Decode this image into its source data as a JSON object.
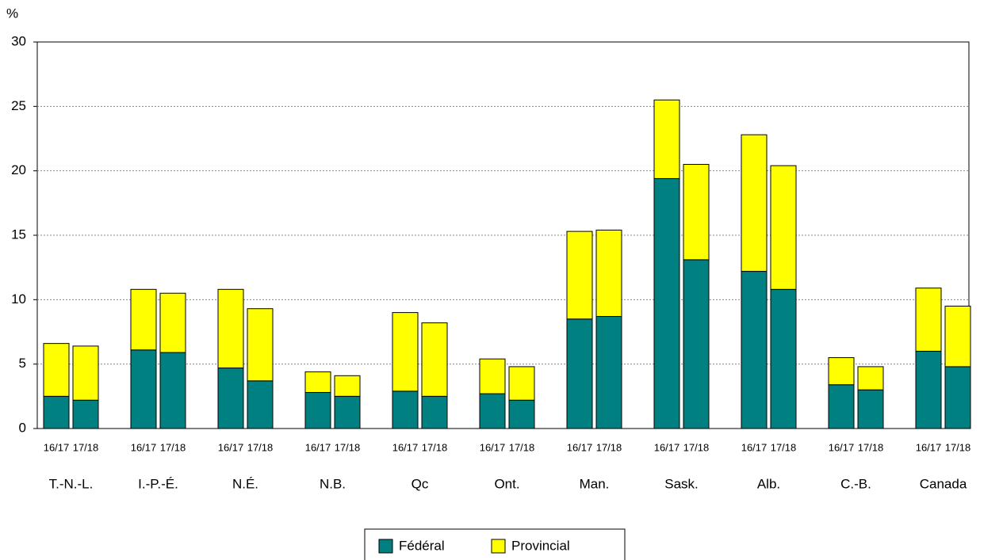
{
  "chart_data": {
    "type": "stacked_bar",
    "y_label": "%",
    "categories": [
      "16/17",
      "17/18",
      "16/17",
      "17/18",
      "16/17",
      "17/18",
      "16/17",
      "17/18",
      "16/17",
      "17/18",
      "16/17",
      "17/18",
      "16/17",
      "17/18",
      "16/17",
      "17/18",
      "16/17",
      "17/18",
      "16/17",
      "17/18",
      "16/17",
      "17/18"
    ],
    "groups": [
      "T.-N.-L.",
      "I.-P.-É.",
      "N.É.",
      "N.B.",
      "Qc",
      "Ont.",
      "Man.",
      "Sask.",
      "Alb.",
      "C.-B.",
      "Canada"
    ],
    "series": [
      {
        "name": "Fédéral",
        "color": "#008080",
        "values": [
          2.5,
          2.2,
          6.1,
          5.9,
          4.7,
          3.7,
          2.8,
          2.5,
          2.9,
          2.5,
          2.7,
          2.2,
          8.5,
          8.7,
          19.4,
          13.1,
          12.2,
          10.8,
          3.4,
          3.0,
          6.0,
          4.8
        ]
      },
      {
        "name": "Provincial",
        "color": "#ffff00",
        "values": [
          4.1,
          4.2,
          4.7,
          4.6,
          6.1,
          5.6,
          1.6,
          1.6,
          6.1,
          5.7,
          2.7,
          2.6,
          6.8,
          6.7,
          6.1,
          7.4,
          10.6,
          9.6,
          2.1,
          1.8,
          4.9,
          4.7
        ]
      }
    ],
    "ylim": [
      0,
      30
    ],
    "yticks": [
      0,
      5,
      10,
      15,
      20,
      25,
      30
    ],
    "grid": true,
    "legend": "bottom"
  }
}
